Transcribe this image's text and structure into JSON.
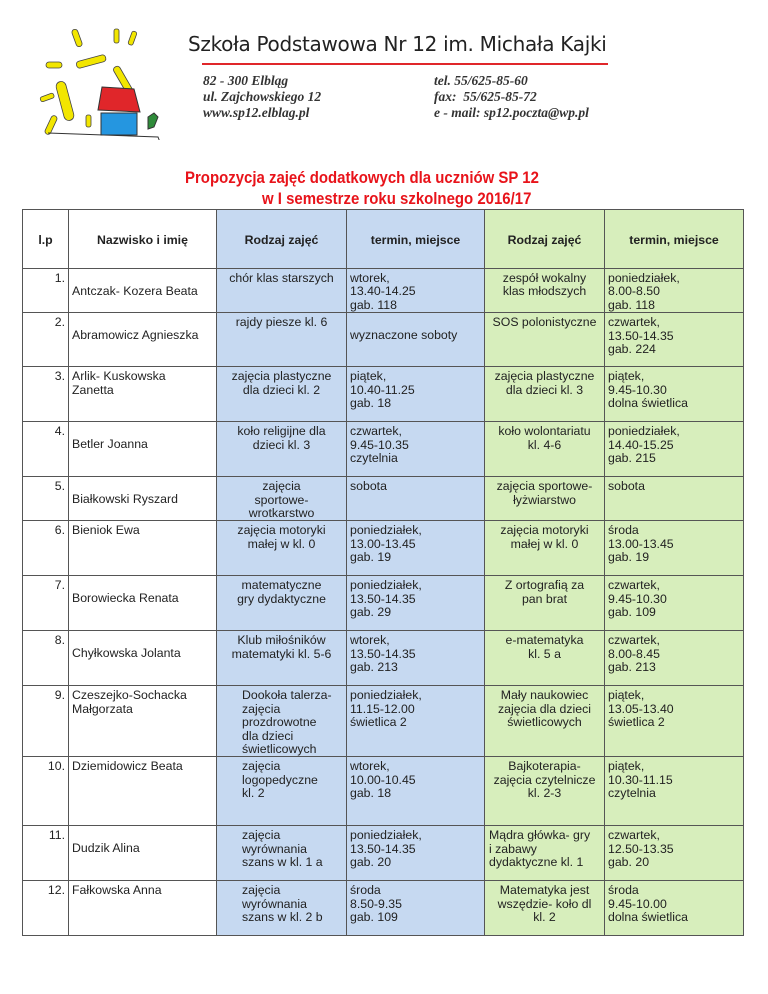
{
  "letterhead": {
    "school_name": "Szkoła Podstawowa Nr 12 im. Michała Kajki",
    "address_lines": [
      "82 - 300 Elbląg",
      "ul. Zajchowskiego 12",
      "www.sp12.elblag.pl"
    ],
    "contact_lines": [
      "tel. 55/625-85-60",
      "fax:  55/625-85-72",
      "e - mail: sp12.poczta@wp.pl"
    ],
    "accent_color": "#e0262a"
  },
  "title": {
    "line1": "Propozycja zajęć dodatkowych dla uczniów SP 12",
    "line2": "w I semestrze roku szkolnego 2016/17",
    "color": "#e8131a"
  },
  "table": {
    "headers": [
      "l.p",
      "Nazwisko i imię",
      "Rodzaj zajęć",
      "termin, miejsce",
      "Rodzaj zajęć",
      "termin, miejsce"
    ],
    "colors": {
      "first_pair": "#c6d9f1",
      "second_pair": "#d7eebc"
    },
    "rows": [
      {
        "lp": "1.",
        "name": "Antczak- Kozera Beata",
        "a1": "chór klas starszych",
        "t1": "wtorek,\n13.40-14.25\ngab. 118",
        "a2": "zespół wokalny\nklas młodszych",
        "t2": "poniedziałek,\n8.00-8.50\ngab. 118"
      },
      {
        "lp": "2.",
        "name": "Abramowicz Agnieszka",
        "a1": "rajdy piesze kl. 6",
        "t1": "wyznaczone soboty",
        "a2": "SOS polonistyczne",
        "t2": "czwartek,\n13.50-14.35\ngab. 224"
      },
      {
        "lp": "3.",
        "name": "Arlik- Kuskowska\nZanetta",
        "a1": "zajęcia plastyczne\ndla dzieci kl. 2",
        "t1": "piątek,\n10.40-11.25\ngab. 18",
        "a2": "zajęcia plastyczne\ndla dzieci kl. 3",
        "t2": "piątek,\n9.45-10.30\ndolna świetlica"
      },
      {
        "lp": "4.",
        "name": "Betler Joanna",
        "a1": "koło religijne dla\ndzieci kl. 3",
        "t1": "czwartek,\n9.45-10.35\nczytelnia",
        "a2": "koło wolontariatu\nkl. 4-6",
        "t2": "poniedziałek,\n14.40-15.25\ngab. 215"
      },
      {
        "lp": "5.",
        "name": "Białkowski Ryszard",
        "a1": "zajęcia\nsportowe-\nwrotkarstwo",
        "t1": "sobota",
        "a2": "zajęcia sportowe-\nłyżwiarstwo",
        "t2": "sobota"
      },
      {
        "lp": "6.",
        "name": "Bieniok Ewa",
        "a1": "zajęcia motoryki\nmałej w kl. 0",
        "t1": "poniedziałek,\n13.00-13.45\ngab. 19",
        "a2": "zajęcia motoryki\nmałej w kl. 0",
        "t2": "środa\n13.00-13.45\ngab. 19"
      },
      {
        "lp": "7.",
        "name": "Borowiecka Renata",
        "a1": "matematyczne\ngry dydaktyczne",
        "t1": "poniedziałek,\n13.50-14.35\ngab. 29",
        "a2": "Z ortografią za\npan brat",
        "t2": "czwartek,\n9.45-10.30\ngab. 109"
      },
      {
        "lp": "8.",
        "name": "Chyłkowska Jolanta",
        "a1": "Klub miłośników\nmatematyki kl. 5-6",
        "t1": "wtorek,\n13.50-14.35\ngab. 213",
        "a2": "e-matematyka\nkl. 5 a",
        "t2": "czwartek,\n8.00-8.45\ngab. 213"
      },
      {
        "lp": "9.",
        "name": "Czeszejko-Sochacka\nMałgorzata",
        "a1": "Dookoła talerza-\nzajęcia\nprozdrowotne\ndla dzieci\nświetlicowych",
        "t1": "poniedziałek,\n11.15-12.00\nświetlica 2",
        "a2": "Mały naukowiec\nzajęcia dla dzieci\nświetlicowych",
        "t2": "piątek,\n13.05-13.40\nświetlica 2"
      },
      {
        "lp": "10.",
        "name": "Dziemidowicz Beata",
        "a1": "zajęcia\nlogopedyczne\nkl. 2",
        "t1": "wtorek,\n10.00-10.45\ngab. 18",
        "a2": "Bajkoterapia-\nzajęcia czytelnicze\nkl. 2-3",
        "t2": "piątek,\n10.30-11.15\nczytelnia"
      },
      {
        "lp": "11.",
        "name": "Dudzik Alina",
        "a1": "zajęcia\nwyrównania\nszans w kl. 1 a",
        "t1": "poniedziałek,\n13.50-14.35\ngab. 20",
        "a2": "Mądra główka- gry\ni zabawy\ndydaktyczne kl. 1",
        "t2": "czwartek,\n12.50-13.35\ngab. 20"
      },
      {
        "lp": "12.",
        "name": "Fałkowska Anna",
        "a1": "zajęcia\nwyrównania\nszans w kl. 2 b",
        "t1": "środa\n8.50-9.35\ngab. 109",
        "a2": "Matematyka jest\nwszędzie- koło dl\nkl. 2",
        "t2": "środa\n9.45-10.00\ndolna świetlica"
      }
    ]
  }
}
